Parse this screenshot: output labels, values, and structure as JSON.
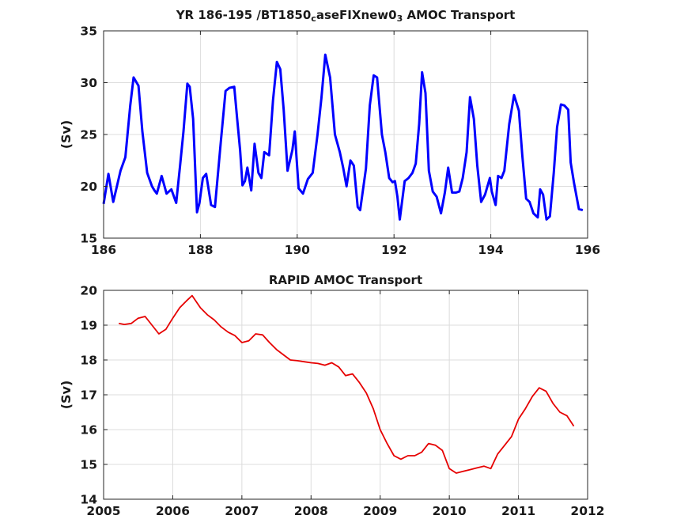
{
  "chart_data": [
    {
      "type": "line",
      "title": "YR 186-195 /BT1850_caseFIXnew0_3 AMOC Transport",
      "title_parts": [
        "YR 186-195 /BT1850",
        "c",
        "aseFIXnew0",
        "3",
        " AMOC Transport"
      ],
      "xlabel": "",
      "ylabel": "(Sv)",
      "xlim": [
        186,
        196
      ],
      "ylim": [
        15,
        35
      ],
      "xticks": [
        "186",
        "188",
        "190",
        "192",
        "194",
        "196"
      ],
      "yticks": [
        "15",
        "20",
        "25",
        "30",
        "35"
      ],
      "grid": true,
      "color": "#0000ff",
      "x": [
        186.0,
        186.1,
        186.2,
        186.35,
        186.45,
        186.55,
        186.62,
        186.72,
        186.8,
        186.9,
        187.0,
        187.05,
        187.1,
        187.2,
        187.3,
        187.4,
        187.5,
        187.58,
        187.65,
        187.73,
        187.78,
        187.85,
        187.93,
        187.98,
        188.05,
        188.12,
        188.22,
        188.3,
        188.42,
        188.52,
        188.6,
        188.7,
        188.76,
        188.82,
        188.87,
        188.92,
        188.97,
        189.05,
        189.12,
        189.2,
        189.26,
        189.32,
        189.42,
        189.5,
        189.58,
        189.65,
        189.72,
        189.8,
        189.85,
        189.9,
        189.95,
        190.03,
        190.12,
        190.22,
        190.32,
        190.42,
        190.5,
        190.58,
        190.68,
        190.78,
        190.88,
        190.95,
        191.02,
        191.1,
        191.17,
        191.25,
        191.3,
        191.42,
        191.5,
        191.58,
        191.65,
        191.75,
        191.82,
        191.9,
        191.97,
        192.02,
        192.07,
        192.12,
        192.22,
        192.3,
        192.38,
        192.45,
        192.52,
        192.58,
        192.65,
        192.72,
        192.8,
        192.88,
        192.97,
        193.05,
        193.12,
        193.2,
        193.28,
        193.35,
        193.42,
        193.5,
        193.57,
        193.65,
        193.72,
        193.8,
        193.88,
        193.98,
        194.02,
        194.1,
        194.15,
        194.22,
        194.28,
        194.38,
        194.48,
        194.58,
        194.65,
        194.73,
        194.8,
        194.88,
        194.97,
        195.02,
        195.08,
        195.15,
        195.22,
        195.3,
        195.37,
        195.45,
        195.52,
        195.6,
        195.65,
        195.72,
        195.82,
        195.9
      ],
      "y": [
        18.3,
        21.2,
        18.5,
        21.5,
        22.8,
        27.8,
        30.5,
        29.7,
        25.3,
        21.3,
        20.0,
        19.6,
        19.3,
        21.0,
        19.3,
        19.7,
        18.4,
        22.0,
        25.3,
        29.9,
        29.6,
        26.5,
        17.5,
        18.4,
        20.8,
        21.2,
        18.2,
        18.0,
        24.2,
        29.2,
        29.5,
        29.6,
        26.5,
        23.5,
        20.1,
        20.5,
        21.8,
        19.6,
        24.1,
        21.3,
        20.8,
        23.3,
        23.0,
        28.3,
        32.0,
        31.3,
        27.4,
        21.5,
        22.5,
        23.5,
        25.3,
        19.8,
        19.3,
        20.7,
        21.3,
        25.0,
        28.5,
        32.7,
        30.5,
        25.0,
        23.3,
        21.8,
        20.0,
        22.5,
        22.0,
        18.0,
        17.7,
        21.7,
        27.8,
        30.7,
        30.5,
        25.0,
        23.3,
        20.8,
        20.4,
        20.5,
        19.0,
        16.8,
        20.5,
        20.8,
        21.3,
        22.2,
        26.0,
        31.0,
        29.0,
        21.5,
        19.5,
        19.0,
        17.4,
        19.4,
        21.8,
        19.4,
        19.4,
        19.5,
        20.8,
        23.3,
        28.6,
        26.5,
        22.0,
        18.5,
        19.2,
        20.8,
        19.5,
        18.2,
        21.0,
        20.8,
        21.5,
        26.0,
        28.8,
        27.3,
        23.0,
        18.8,
        18.5,
        17.4,
        17.0,
        19.7,
        19.2,
        16.8,
        17.1,
        21.3,
        25.7,
        27.9,
        27.8,
        27.4,
        22.3,
        20.3,
        17.8,
        17.7
      ]
    },
    {
      "type": "line",
      "title": "RAPID AMOC Transport",
      "xlabel": "",
      "ylabel": "(Sv)",
      "xlim": [
        2005,
        2012
      ],
      "ylim": [
        14,
        20
      ],
      "xticks": [
        "2005",
        "2006",
        "2007",
        "2008",
        "2009",
        "2010",
        "2011",
        "2012"
      ],
      "yticks": [
        "14",
        "15",
        "16",
        "17",
        "18",
        "19",
        "20"
      ],
      "grid": true,
      "color": "#e60000",
      "x": [
        2005.22,
        2005.3,
        2005.4,
        2005.5,
        2005.6,
        2005.7,
        2005.8,
        2005.9,
        2006.0,
        2006.1,
        2006.2,
        2006.28,
        2006.4,
        2006.5,
        2006.6,
        2006.7,
        2006.8,
        2006.9,
        2007.0,
        2007.1,
        2007.2,
        2007.3,
        2007.4,
        2007.5,
        2007.6,
        2007.7,
        2007.8,
        2007.9,
        2008.0,
        2008.1,
        2008.2,
        2008.3,
        2008.4,
        2008.5,
        2008.6,
        2008.7,
        2008.8,
        2008.9,
        2009.0,
        2009.1,
        2009.2,
        2009.3,
        2009.4,
        2009.5,
        2009.6,
        2009.7,
        2009.8,
        2009.9,
        2010.0,
        2010.1,
        2010.2,
        2010.3,
        2010.4,
        2010.5,
        2010.6,
        2010.7,
        2010.8,
        2010.9,
        2011.0,
        2011.1,
        2011.2,
        2011.3,
        2011.4,
        2011.5,
        2011.6,
        2011.7,
        2011.8
      ],
      "y": [
        19.05,
        19.02,
        19.05,
        19.2,
        19.25,
        19.0,
        18.75,
        18.88,
        19.2,
        19.5,
        19.7,
        19.85,
        19.5,
        19.3,
        19.15,
        18.95,
        18.8,
        18.7,
        18.5,
        18.55,
        18.75,
        18.72,
        18.5,
        18.3,
        18.15,
        18.0,
        17.98,
        17.95,
        17.92,
        17.9,
        17.85,
        17.92,
        17.8,
        17.55,
        17.6,
        17.35,
        17.05,
        16.6,
        16.0,
        15.6,
        15.25,
        15.15,
        15.25,
        15.25,
        15.35,
        15.6,
        15.55,
        15.4,
        14.88,
        14.75,
        14.8,
        14.85,
        14.9,
        14.95,
        14.88,
        15.3,
        15.55,
        15.8,
        16.3,
        16.6,
        16.95,
        17.2,
        17.1,
        16.75,
        16.5,
        16.4,
        16.1
      ]
    }
  ]
}
